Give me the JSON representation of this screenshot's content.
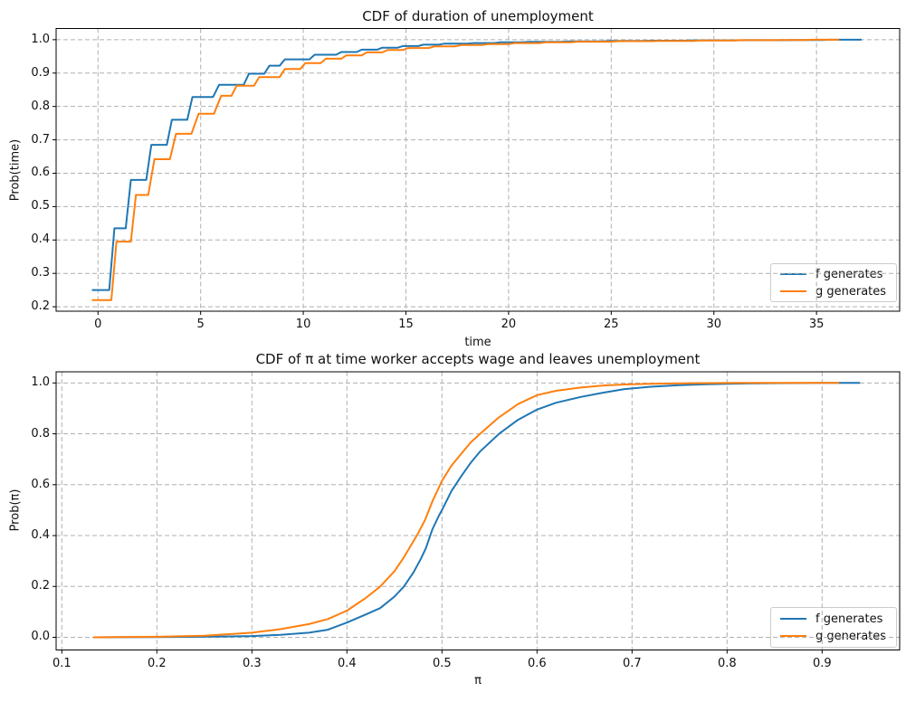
{
  "figure": {
    "background": "#ffffff"
  },
  "colors": {
    "f_series": "#1f77b4",
    "g_series": "#ff7f0e",
    "grid": "#b0b0b0",
    "spine": "#000000",
    "text": "#111111"
  },
  "chart_data": [
    {
      "type": "line",
      "title": "CDF of duration of unemployment",
      "xlabel": "time",
      "ylabel": "Prob(time)",
      "xlim": [
        -2.04,
        39.05
      ],
      "ylim": [
        0.1867,
        1.0335
      ],
      "grid": "dashed",
      "legend_position": "lower right",
      "xticks": {
        "values": [
          0,
          5,
          10,
          15,
          20,
          25,
          30,
          35
        ],
        "labels": [
          "0",
          "5",
          "10",
          "15",
          "20",
          "25",
          "30",
          "35"
        ]
      },
      "yticks": {
        "values": [
          0.2,
          0.3,
          0.4,
          0.5,
          0.6,
          0.7,
          0.8,
          0.9,
          1.0
        ],
        "labels": [
          "0.2",
          "0.3",
          "0.4",
          "0.5",
          "0.6",
          "0.7",
          "0.8",
          "0.9",
          "1.0"
        ]
      },
      "series": [
        {
          "name": "f generates",
          "color_key": "f_series",
          "points": [
            [
              -0.3,
              0.25
            ],
            [
              0.55,
              0.25
            ],
            [
              0.8,
              0.435
            ],
            [
              1.35,
              0.435
            ],
            [
              1.6,
              0.58
            ],
            [
              2.35,
              0.58
            ],
            [
              2.6,
              0.685
            ],
            [
              3.35,
              0.685
            ],
            [
              3.6,
              0.76
            ],
            [
              4.35,
              0.76
            ],
            [
              4.6,
              0.828
            ],
            [
              5.6,
              0.828
            ],
            [
              5.9,
              0.865
            ],
            [
              7.1,
              0.865
            ],
            [
              7.35,
              0.898
            ],
            [
              8.1,
              0.898
            ],
            [
              8.35,
              0.922
            ],
            [
              8.85,
              0.922
            ],
            [
              9.1,
              0.941
            ],
            [
              10.3,
              0.941
            ],
            [
              10.55,
              0.955
            ],
            [
              11.6,
              0.955
            ],
            [
              11.85,
              0.963
            ],
            [
              12.6,
              0.963
            ],
            [
              12.85,
              0.97
            ],
            [
              13.6,
              0.97
            ],
            [
              13.85,
              0.976
            ],
            [
              14.6,
              0.976
            ],
            [
              14.85,
              0.981
            ],
            [
              15.6,
              0.981
            ],
            [
              15.85,
              0.985
            ],
            [
              16.6,
              0.985
            ],
            [
              16.85,
              0.988
            ],
            [
              18.0,
              0.988
            ],
            [
              18.3,
              0.99
            ],
            [
              19.3,
              0.99
            ],
            [
              19.6,
              0.992
            ],
            [
              20.6,
              0.992
            ],
            [
              21.0,
              0.9935
            ],
            [
              22.5,
              0.9935
            ],
            [
              23.0,
              0.995
            ],
            [
              24.5,
              0.995
            ],
            [
              25.0,
              0.996
            ],
            [
              26.5,
              0.996
            ],
            [
              27.0,
              0.997
            ],
            [
              28.5,
              0.997
            ],
            [
              29.0,
              0.998
            ],
            [
              31.0,
              0.998
            ],
            [
              31.5,
              0.9985
            ],
            [
              33.5,
              0.9985
            ],
            [
              34.0,
              0.999
            ],
            [
              35.3,
              0.999
            ],
            [
              35.6,
              1.0
            ],
            [
              37.2,
              1.0
            ]
          ]
        },
        {
          "name": "g generates",
          "color_key": "g_series",
          "points": [
            [
              -0.3,
              0.22
            ],
            [
              0.65,
              0.22
            ],
            [
              0.9,
              0.395
            ],
            [
              1.6,
              0.395
            ],
            [
              1.85,
              0.535
            ],
            [
              2.45,
              0.535
            ],
            [
              2.75,
              0.642
            ],
            [
              3.5,
              0.642
            ],
            [
              3.8,
              0.718
            ],
            [
              4.55,
              0.718
            ],
            [
              4.9,
              0.778
            ],
            [
              5.65,
              0.778
            ],
            [
              6.0,
              0.832
            ],
            [
              6.5,
              0.832
            ],
            [
              6.75,
              0.862
            ],
            [
              7.6,
              0.862
            ],
            [
              7.85,
              0.888
            ],
            [
              8.85,
              0.888
            ],
            [
              9.1,
              0.912
            ],
            [
              9.85,
              0.912
            ],
            [
              10.1,
              0.93
            ],
            [
              10.85,
              0.93
            ],
            [
              11.1,
              0.943
            ],
            [
              11.85,
              0.943
            ],
            [
              12.1,
              0.953
            ],
            [
              12.85,
              0.953
            ],
            [
              13.1,
              0.962
            ],
            [
              13.85,
              0.962
            ],
            [
              14.1,
              0.969
            ],
            [
              14.85,
              0.969
            ],
            [
              15.1,
              0.975
            ],
            [
              16.1,
              0.975
            ],
            [
              16.4,
              0.98
            ],
            [
              17.4,
              0.98
            ],
            [
              17.7,
              0.984
            ],
            [
              18.7,
              0.984
            ],
            [
              19.0,
              0.987
            ],
            [
              20.0,
              0.987
            ],
            [
              20.3,
              0.99
            ],
            [
              21.5,
              0.99
            ],
            [
              21.8,
              0.992
            ],
            [
              23.0,
              0.992
            ],
            [
              23.3,
              0.994
            ],
            [
              25.0,
              0.994
            ],
            [
              25.3,
              0.9955
            ],
            [
              27.0,
              0.9955
            ],
            [
              27.3,
              0.9965
            ],
            [
              29.0,
              0.9965
            ],
            [
              29.3,
              0.9975
            ],
            [
              31.0,
              0.9975
            ],
            [
              31.3,
              0.9985
            ],
            [
              33.0,
              0.9985
            ],
            [
              33.3,
              0.9992
            ],
            [
              34.5,
              0.9992
            ],
            [
              34.8,
              1.0
            ],
            [
              36.1,
              1.0
            ]
          ]
        }
      ]
    },
    {
      "type": "line",
      "title": "CDF of π at time worker accepts wage and leaves unemployment",
      "xlabel": "π",
      "ylabel": "Prob(π)",
      "xlim": [
        0.094,
        0.9816
      ],
      "ylim": [
        -0.0498,
        1.0438
      ],
      "grid": "dashed",
      "legend_position": "lower right",
      "xticks": {
        "values": [
          0.1,
          0.2,
          0.3,
          0.4,
          0.5,
          0.6,
          0.7,
          0.8,
          0.9
        ],
        "labels": [
          "0.1",
          "0.2",
          "0.3",
          "0.4",
          "0.5",
          "0.6",
          "0.7",
          "0.8",
          "0.9"
        ]
      },
      "yticks": {
        "values": [
          0.0,
          0.2,
          0.4,
          0.6,
          0.8,
          1.0
        ],
        "labels": [
          "0.0",
          "0.2",
          "0.4",
          "0.6",
          "0.8",
          "1.0"
        ]
      },
      "series": [
        {
          "name": "f generates",
          "color_key": "f_series",
          "points": [
            [
              0.133,
              0.0
            ],
            [
              0.2,
              0.001
            ],
            [
              0.25,
              0.002
            ],
            [
              0.3,
              0.005
            ],
            [
              0.33,
              0.01
            ],
            [
              0.36,
              0.018
            ],
            [
              0.38,
              0.03
            ],
            [
              0.4,
              0.058
            ],
            [
              0.42,
              0.09
            ],
            [
              0.435,
              0.115
            ],
            [
              0.45,
              0.16
            ],
            [
              0.46,
              0.2
            ],
            [
              0.47,
              0.255
            ],
            [
              0.478,
              0.31
            ],
            [
              0.483,
              0.35
            ],
            [
              0.49,
              0.425
            ],
            [
              0.497,
              0.48
            ],
            [
              0.5,
              0.5
            ],
            [
              0.51,
              0.575
            ],
            [
              0.52,
              0.632
            ],
            [
              0.53,
              0.685
            ],
            [
              0.54,
              0.73
            ],
            [
              0.56,
              0.8
            ],
            [
              0.58,
              0.855
            ],
            [
              0.6,
              0.895
            ],
            [
              0.62,
              0.922
            ],
            [
              0.646,
              0.945
            ],
            [
              0.67,
              0.962
            ],
            [
              0.692,
              0.976
            ],
            [
              0.72,
              0.985
            ],
            [
              0.75,
              0.991
            ],
            [
              0.78,
              0.995
            ],
            [
              0.82,
              0.998
            ],
            [
              0.86,
              0.9995
            ],
            [
              0.9,
              1.0
            ],
            [
              0.94,
              1.0
            ]
          ]
        },
        {
          "name": "g generates",
          "color_key": "g_series",
          "points": [
            [
              0.133,
              0.0
            ],
            [
              0.2,
              0.002
            ],
            [
              0.25,
              0.006
            ],
            [
              0.3,
              0.018
            ],
            [
              0.33,
              0.032
            ],
            [
              0.36,
              0.052
            ],
            [
              0.38,
              0.072
            ],
            [
              0.4,
              0.105
            ],
            [
              0.42,
              0.155
            ],
            [
              0.435,
              0.2
            ],
            [
              0.45,
              0.26
            ],
            [
              0.46,
              0.315
            ],
            [
              0.47,
              0.378
            ],
            [
              0.475,
              0.41
            ],
            [
              0.482,
              0.46
            ],
            [
              0.49,
              0.535
            ],
            [
              0.5,
              0.615
            ],
            [
              0.51,
              0.675
            ],
            [
              0.52,
              0.72
            ],
            [
              0.53,
              0.765
            ],
            [
              0.54,
              0.8
            ],
            [
              0.56,
              0.865
            ],
            [
              0.58,
              0.917
            ],
            [
              0.6,
              0.952
            ],
            [
              0.62,
              0.969
            ],
            [
              0.646,
              0.982
            ],
            [
              0.67,
              0.99
            ],
            [
              0.692,
              0.994
            ],
            [
              0.72,
              0.997
            ],
            [
              0.75,
              0.9988
            ],
            [
              0.78,
              0.9995
            ],
            [
              0.81,
              1.0
            ],
            [
              0.918,
              1.0
            ]
          ]
        }
      ]
    }
  ]
}
